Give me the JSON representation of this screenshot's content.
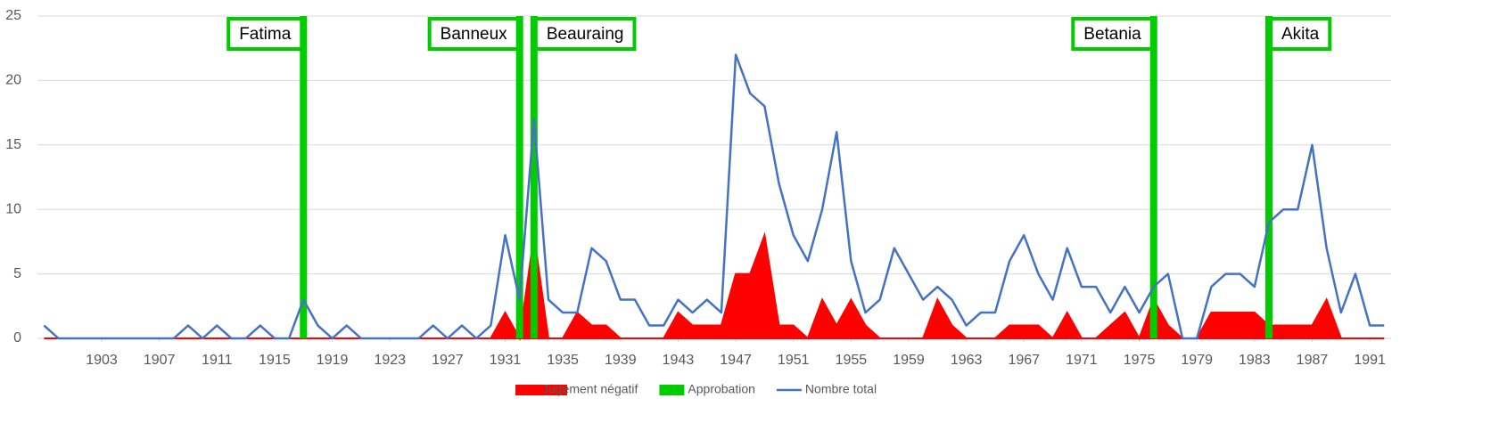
{
  "chart_data": {
    "type": "combo",
    "x": [
      1899,
      1900,
      1901,
      1902,
      1903,
      1904,
      1905,
      1906,
      1907,
      1908,
      1909,
      1910,
      1911,
      1912,
      1913,
      1914,
      1915,
      1916,
      1917,
      1918,
      1919,
      1920,
      1921,
      1922,
      1923,
      1924,
      1925,
      1926,
      1927,
      1928,
      1929,
      1930,
      1931,
      1932,
      1933,
      1934,
      1935,
      1936,
      1937,
      1938,
      1939,
      1940,
      1941,
      1942,
      1943,
      1944,
      1945,
      1946,
      1947,
      1948,
      1949,
      1950,
      1951,
      1952,
      1953,
      1954,
      1955,
      1956,
      1957,
      1958,
      1959,
      1960,
      1961,
      1962,
      1963,
      1964,
      1965,
      1966,
      1967,
      1968,
      1969,
      1970,
      1971,
      1972,
      1973,
      1974,
      1975,
      1976,
      1977,
      1978,
      1979,
      1980,
      1981,
      1982,
      1983,
      1984,
      1985,
      1986,
      1987,
      1988,
      1989,
      1990,
      1991,
      1992
    ],
    "series": [
      {
        "name": "Jugement négatif",
        "type": "area",
        "color": "#ff0000",
        "values": [
          0,
          0,
          0,
          0,
          0,
          0,
          0,
          0,
          0,
          0,
          0,
          0,
          0,
          0,
          0,
          0,
          0,
          0,
          0,
          0,
          0,
          0,
          0,
          0,
          0,
          0,
          0,
          0,
          0,
          0,
          0,
          0,
          2,
          0,
          8,
          0,
          0,
          2,
          1,
          1,
          0,
          0,
          0,
          0,
          2,
          1,
          1,
          1,
          5,
          5,
          8,
          1,
          1,
          0,
          3,
          1,
          3,
          1,
          0,
          0,
          0,
          0,
          3,
          1,
          0,
          0,
          0,
          1,
          1,
          1,
          0,
          2,
          0,
          0,
          1,
          2,
          0,
          3,
          1,
          0,
          0,
          2,
          2,
          2,
          2,
          1,
          1,
          1,
          1,
          3,
          0,
          0,
          0,
          0
        ]
      },
      {
        "name": "Approbation",
        "type": "bar",
        "color": "#00cc00",
        "x": [
          1917,
          1932,
          1933,
          1976,
          1984
        ],
        "values": [
          25,
          25,
          25,
          25,
          25
        ],
        "labels": [
          "Fatima",
          "Banneux",
          "Beauraing",
          "Betania",
          "Akita"
        ]
      },
      {
        "name": "Nombre total",
        "type": "line",
        "color": "#4472c4",
        "values": [
          1,
          0,
          0,
          0,
          0,
          0,
          0,
          0,
          0,
          0,
          1,
          0,
          1,
          0,
          0,
          1,
          0,
          0,
          3,
          1,
          0,
          1,
          0,
          0,
          0,
          0,
          0,
          1,
          0,
          1,
          0,
          1,
          8,
          3,
          17,
          3,
          2,
          2,
          7,
          6,
          3,
          3,
          1,
          1,
          3,
          2,
          3,
          2,
          22,
          19,
          18,
          12,
          8,
          6,
          10,
          16,
          6,
          2,
          3,
          7,
          5,
          3,
          4,
          3,
          1,
          2,
          2,
          6,
          8,
          5,
          3,
          7,
          4,
          4,
          2,
          4,
          2,
          4,
          5,
          0,
          0,
          4,
          5,
          5,
          4,
          9,
          10,
          10,
          15,
          7,
          2,
          5,
          1,
          1
        ]
      }
    ],
    "xlim": [
      1899.5,
      1993.5
    ],
    "xticks": [
      1903,
      1907,
      1911,
      1915,
      1919,
      1923,
      1927,
      1931,
      1935,
      1939,
      1943,
      1947,
      1951,
      1955,
      1959,
      1963,
      1967,
      1971,
      1975,
      1979,
      1983,
      1987,
      1991
    ],
    "ylim": [
      0,
      25
    ],
    "yticks": [
      0,
      5,
      10,
      15,
      20,
      25
    ],
    "grid": true,
    "legend": "bottom"
  }
}
